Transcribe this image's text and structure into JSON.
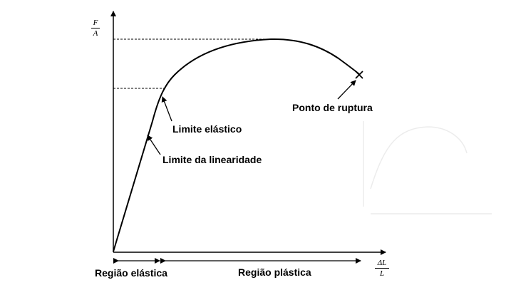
{
  "axes": {
    "y_numerator": "F",
    "y_denominator": "A",
    "x_numerator": "ΔL",
    "x_denominator": "L"
  },
  "annotations": {
    "elastic_limit": "Limite elástico",
    "linearity_limit": "Limite da linearidade",
    "rupture_point": "Ponto de ruptura"
  },
  "regions": {
    "elastic": "Região elástica",
    "plastic": "Região plástica"
  },
  "colors": {
    "line": "#000000",
    "ghost": "#e6e6e6"
  }
}
